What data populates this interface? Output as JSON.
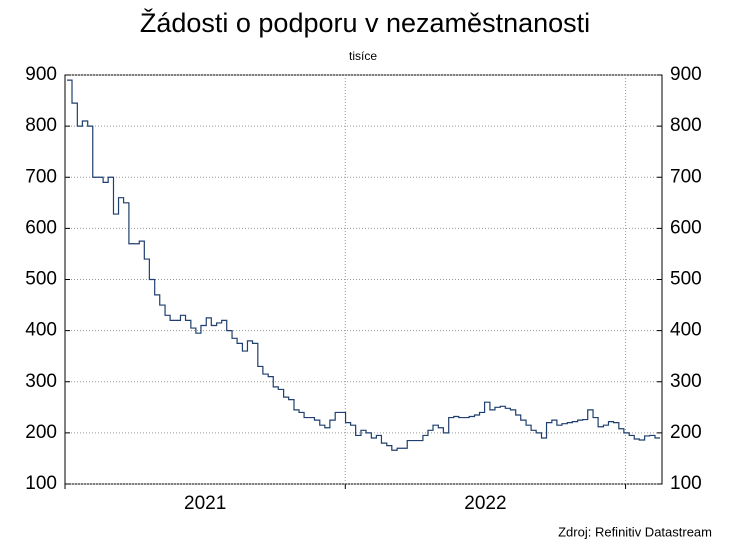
{
  "chart_data": {
    "type": "line",
    "step": true,
    "title": "Žádosti o podporu v nezaměstnanosti",
    "subtitle": "tisíce",
    "source": "Zdroj: Refinitiv Datastream",
    "x": [
      2021.007,
      2021.025,
      2021.044,
      2021.062,
      2021.081,
      2021.099,
      2021.117,
      2021.136,
      2021.154,
      2021.173,
      2021.191,
      2021.209,
      2021.228,
      2021.246,
      2021.265,
      2021.283,
      2021.301,
      2021.32,
      2021.338,
      2021.357,
      2021.375,
      2021.393,
      2021.412,
      2021.43,
      2021.449,
      2021.467,
      2021.485,
      2021.504,
      2021.522,
      2021.541,
      2021.559,
      2021.577,
      2021.596,
      2021.614,
      2021.633,
      2021.651,
      2021.669,
      2021.688,
      2021.706,
      2021.725,
      2021.743,
      2021.761,
      2021.78,
      2021.798,
      2021.817,
      2021.835,
      2021.853,
      2021.872,
      2021.89,
      2021.909,
      2021.927,
      2021.945,
      2021.964,
      2021.982,
      2022.001,
      2022.019,
      2022.037,
      2022.056,
      2022.074,
      2022.093,
      2022.111,
      2022.129,
      2022.148,
      2022.166,
      2022.185,
      2022.203,
      2022.221,
      2022.24,
      2022.258,
      2022.277,
      2022.295,
      2022.313,
      2022.332,
      2022.35,
      2022.369,
      2022.387,
      2022.405,
      2022.424,
      2022.442,
      2022.461,
      2022.479,
      2022.497,
      2022.516,
      2022.534,
      2022.553,
      2022.571,
      2022.589,
      2022.608,
      2022.626,
      2022.645,
      2022.663,
      2022.681,
      2022.7,
      2022.718,
      2022.737,
      2022.755,
      2022.773,
      2022.792,
      2022.81,
      2022.829,
      2022.847,
      2022.865,
      2022.884,
      2022.902,
      2022.921,
      2022.939,
      2022.957,
      2022.976,
      2022.994,
      2023.013,
      2023.031,
      2023.049,
      2023.068,
      2023.086,
      2023.105
    ],
    "series": [
      {
        "color": "#1f3f6e",
        "values": [
          890,
          845,
          800,
          810,
          800,
          700,
          700,
          690,
          700,
          628,
          660,
          650,
          570,
          570,
          575,
          540,
          500,
          470,
          450,
          430,
          420,
          420,
          430,
          420,
          405,
          395,
          410,
          425,
          410,
          415,
          420,
          400,
          385,
          375,
          360,
          380,
          375,
          330,
          315,
          310,
          290,
          285,
          270,
          265,
          245,
          240,
          230,
          230,
          225,
          215,
          210,
          225,
          240,
          240,
          220,
          215,
          195,
          205,
          200,
          190,
          195,
          180,
          175,
          166,
          170,
          170,
          185,
          185,
          185,
          195,
          205,
          215,
          210,
          200,
          230,
          232,
          230,
          230,
          232,
          235,
          240,
          260,
          245,
          250,
          252,
          248,
          245,
          235,
          225,
          215,
          205,
          200,
          190,
          220,
          225,
          215,
          218,
          220,
          222,
          225,
          226,
          245,
          230,
          212,
          215,
          222,
          220,
          208,
          200,
          195,
          188,
          186,
          194,
          195,
          190
        ]
      }
    ],
    "xlim": [
      2021,
      2023.13
    ],
    "xticks": [
      {
        "value": 2021.5,
        "label": "2021"
      },
      {
        "value": 2022.5,
        "label": "2022"
      }
    ],
    "xgrid": [
      2021,
      2022,
      2023
    ],
    "ylim": [
      100,
      900
    ],
    "yticks": [
      100,
      200,
      300,
      400,
      500,
      600,
      700,
      800,
      900
    ],
    "y2lim": [
      100,
      900
    ],
    "y2ticks": [
      100,
      200,
      300,
      400,
      500,
      600,
      700,
      800,
      900
    ],
    "grid": true
  }
}
